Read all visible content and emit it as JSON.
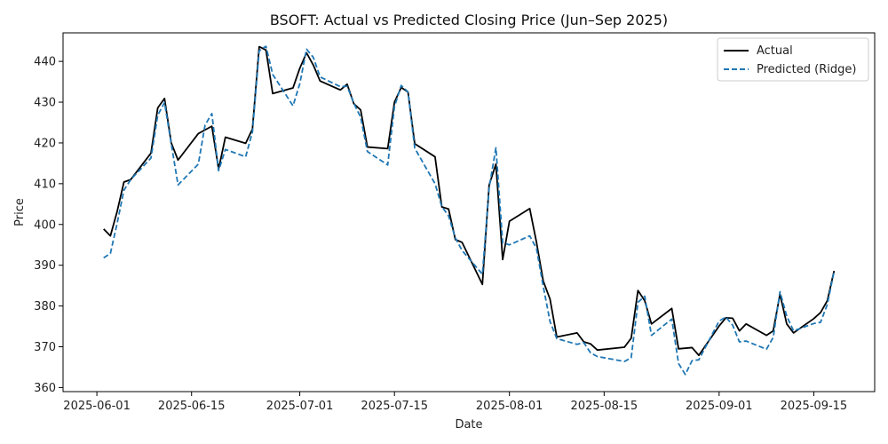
{
  "chart_data": {
    "type": "line",
    "title": "BSOFT: Actual vs Predicted Closing Price (Jun–Sep 2025)",
    "xlabel": "Date",
    "ylabel": "Price",
    "grid": false,
    "legend_position": "top-right",
    "x_range": [
      "2025-05-27",
      "2025-09-24"
    ],
    "ylim": [
      359,
      447
    ],
    "x_ticks": [
      "2025-06-01",
      "2025-06-15",
      "2025-07-01",
      "2025-07-15",
      "2025-08-01",
      "2025-08-15",
      "2025-09-01",
      "2025-09-15"
    ],
    "y_ticks": [
      360,
      370,
      380,
      390,
      400,
      410,
      420,
      430,
      440
    ],
    "series": [
      {
        "name": "Actual",
        "color": "#000000",
        "style": "solid",
        "x": [
          "2025-06-02",
          "2025-06-03",
          "2025-06-04",
          "2025-06-05",
          "2025-06-06",
          "2025-06-09",
          "2025-06-10",
          "2025-06-11",
          "2025-06-12",
          "2025-06-13",
          "2025-06-16",
          "2025-06-17",
          "2025-06-18",
          "2025-06-19",
          "2025-06-20",
          "2025-06-23",
          "2025-06-24",
          "2025-06-25",
          "2025-06-26",
          "2025-06-27",
          "2025-06-30",
          "2025-07-01",
          "2025-07-02",
          "2025-07-03",
          "2025-07-04",
          "2025-07-07",
          "2025-07-08",
          "2025-07-09",
          "2025-07-10",
          "2025-07-11",
          "2025-07-14",
          "2025-07-15",
          "2025-07-16",
          "2025-07-17",
          "2025-07-18",
          "2025-07-21",
          "2025-07-22",
          "2025-07-23",
          "2025-07-24",
          "2025-07-25",
          "2025-07-28",
          "2025-07-29",
          "2025-07-30",
          "2025-07-31",
          "2025-08-01",
          "2025-08-04",
          "2025-08-05",
          "2025-08-06",
          "2025-08-07",
          "2025-08-08",
          "2025-08-11",
          "2025-08-12",
          "2025-08-13",
          "2025-08-14",
          "2025-08-18",
          "2025-08-19",
          "2025-08-20",
          "2025-08-21",
          "2025-08-22",
          "2025-08-25",
          "2025-08-26",
          "2025-08-28",
          "2025-08-29",
          "2025-09-01",
          "2025-09-02",
          "2025-09-03",
          "2025-09-04",
          "2025-09-05",
          "2025-09-08",
          "2025-09-09",
          "2025-09-10",
          "2025-09-11",
          "2025-09-12",
          "2025-09-15",
          "2025-09-16",
          "2025-09-17",
          "2025-09-18"
        ],
        "values": [
          398.9,
          397.2,
          403.2,
          410.4,
          411.0,
          417.5,
          428.6,
          430.9,
          420.0,
          415.8,
          422.3,
          423.2,
          424.1,
          413.6,
          421.4,
          419.9,
          423.4,
          443.6,
          442.8,
          432.1,
          433.5,
          438.3,
          442.1,
          439.1,
          435.2,
          433.0,
          434.4,
          429.6,
          428.1,
          419.0,
          418.6,
          430.0,
          433.6,
          432.5,
          419.8,
          416.6,
          404.3,
          403.8,
          396.3,
          395.6,
          385.3,
          409.7,
          414.8,
          391.4,
          400.8,
          403.9,
          395.6,
          386.1,
          381.7,
          372.4,
          373.4,
          371.2,
          370.7,
          369.2,
          369.9,
          372.1,
          383.8,
          381.3,
          375.6,
          379.4,
          369.5,
          369.8,
          367.9,
          375.1,
          377.1,
          377.0,
          373.9,
          375.6,
          372.8,
          373.9,
          382.9,
          375.6,
          373.4,
          376.9,
          378.4,
          381.3,
          388.6
        ]
      },
      {
        "name": "Predicted (Ridge)",
        "color": "#1f77b4",
        "style": "dashed",
        "x": [
          "2025-06-02",
          "2025-06-03",
          "2025-06-04",
          "2025-06-05",
          "2025-06-06",
          "2025-06-09",
          "2025-06-10",
          "2025-06-11",
          "2025-06-12",
          "2025-06-13",
          "2025-06-16",
          "2025-06-17",
          "2025-06-18",
          "2025-06-19",
          "2025-06-20",
          "2025-06-23",
          "2025-06-24",
          "2025-06-25",
          "2025-06-26",
          "2025-06-27",
          "2025-06-30",
          "2025-07-01",
          "2025-07-02",
          "2025-07-03",
          "2025-07-04",
          "2025-07-07",
          "2025-07-08",
          "2025-07-09",
          "2025-07-10",
          "2025-07-11",
          "2025-07-14",
          "2025-07-15",
          "2025-07-16",
          "2025-07-17",
          "2025-07-18",
          "2025-07-21",
          "2025-07-22",
          "2025-07-23",
          "2025-07-24",
          "2025-07-25",
          "2025-07-28",
          "2025-07-29",
          "2025-07-30",
          "2025-07-31",
          "2025-08-01",
          "2025-08-04",
          "2025-08-05",
          "2025-08-06",
          "2025-08-07",
          "2025-08-08",
          "2025-08-11",
          "2025-08-12",
          "2025-08-13",
          "2025-08-14",
          "2025-08-18",
          "2025-08-19",
          "2025-08-20",
          "2025-08-21",
          "2025-08-22",
          "2025-08-25",
          "2025-08-26",
          "2025-08-27",
          "2025-08-28",
          "2025-08-29",
          "2025-09-01",
          "2025-09-02",
          "2025-09-03",
          "2025-09-04",
          "2025-09-05",
          "2025-09-08",
          "2025-09-09",
          "2025-09-10",
          "2025-09-11",
          "2025-09-12",
          "2025-09-15",
          "2025-09-16",
          "2025-09-17",
          "2025-09-18"
        ],
        "values": [
          391.8,
          392.9,
          400.3,
          408.4,
          411.0,
          416.3,
          426.8,
          429.9,
          419.8,
          409.7,
          414.8,
          424.4,
          427.2,
          413.2,
          418.4,
          416.6,
          422.7,
          442.6,
          443.7,
          436.8,
          429.1,
          434.5,
          443.0,
          441.0,
          436.2,
          433.8,
          433.9,
          429.7,
          426.3,
          417.9,
          414.6,
          428.9,
          434.1,
          432.5,
          418.7,
          410.0,
          404.4,
          402.1,
          396.7,
          393.6,
          387.8,
          409.0,
          418.8,
          395.5,
          395.0,
          397.2,
          394.1,
          384.8,
          376.2,
          372.0,
          370.6,
          371.0,
          368.5,
          367.6,
          366.4,
          367.3,
          380.9,
          382.4,
          372.8,
          376.8,
          365.9,
          363.2,
          366.6,
          366.8,
          376.3,
          377.3,
          375.3,
          371.2,
          371.4,
          369.4,
          372.3,
          383.5,
          377.5,
          373.9,
          375.7,
          376.0,
          380.4,
          388.5
        ]
      }
    ]
  }
}
